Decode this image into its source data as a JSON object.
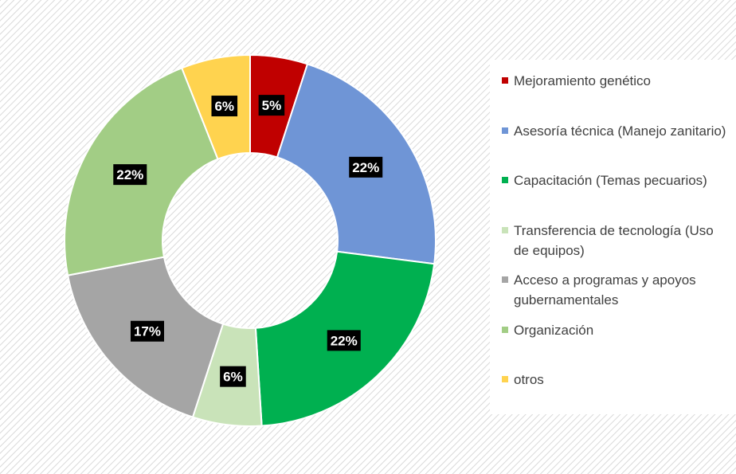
{
  "chart_data": {
    "type": "donut",
    "categories": [
      "Mejoramiento genético",
      "Asesoría técnica (Manejo zanitario)",
      "Capacitación (Temas pecuarios)",
      "Transferencia de tecnología (Uso de equipos)",
      "Acceso a programas y apoyos gubernamentales",
      "Organización",
      "otros"
    ],
    "values": [
      5,
      22,
      22,
      6,
      17,
      22,
      6
    ],
    "value_labels": [
      "5%",
      "22%",
      "22%",
      "6%",
      "17%",
      "22%",
      "6%"
    ],
    "colors": [
      "#c00000",
      "#6f95d6",
      "#00b050",
      "#c9e3b9",
      "#a5a5a5",
      "#a2cd85",
      "#ffd34f"
    ]
  }
}
